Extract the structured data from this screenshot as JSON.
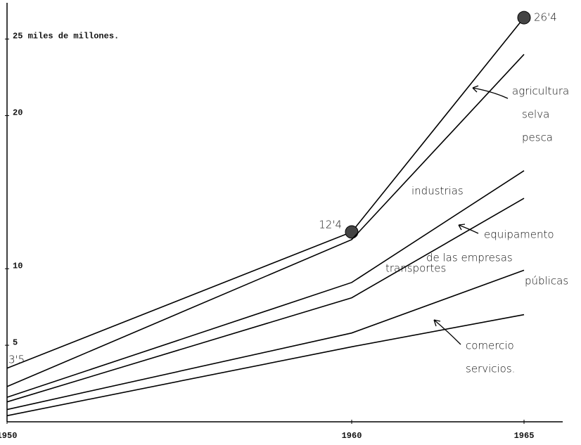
{
  "chart_data": {
    "type": "line",
    "x": [
      1950,
      1960,
      1965
    ],
    "xlim": [
      1950,
      1966
    ],
    "xticks": [
      1950,
      1960,
      1965
    ],
    "ylim": [
      0,
      27
    ],
    "yticks": [
      5,
      10,
      20,
      {
        "value": 25,
        "label": "25 miles de millones."
      }
    ],
    "series": [
      {
        "color": "#000000",
        "values": [
          3.5,
          12.4,
          26.4
        ],
        "value_labels": [
          "3'5",
          "12'4",
          "26'4"
        ]
      },
      {
        "color": "#000000",
        "values": [
          2.3,
          11.9,
          24
        ]
      },
      {
        "color": "#000000",
        "values": [
          1.6,
          9.1,
          16.4
        ]
      },
      {
        "color": "#000000",
        "values": [
          1.3,
          8.1,
          14.6
        ]
      },
      {
        "color": "#000000",
        "values": [
          0.8,
          5.8,
          9.9
        ]
      },
      {
        "color": "#000000",
        "values": [
          0.4,
          4.9,
          7
        ]
      }
    ],
    "annotations": [
      [
        "agricultura",
        "selva",
        "pesca"
      ],
      [
        "industrias"
      ],
      [
        "equipamento",
        "de las empresas",
        "públicas"
      ],
      [
        "transportes"
      ],
      [
        "comercio",
        "servicios."
      ]
    ]
  }
}
